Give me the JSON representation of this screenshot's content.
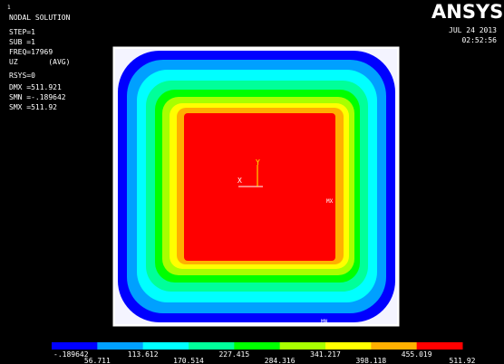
{
  "window_number": "1",
  "header": {
    "title": "NODAL SOLUTION",
    "lines": [
      "STEP=1",
      "SUB =1",
      "FREQ=17969",
      "UZ       (AVG)",
      "RSYS=0",
      "DMX =511.921",
      "SMN =-.189642",
      "SMX =511.92"
    ]
  },
  "logo": {
    "text": "ANSYS",
    "date": "JUL 24 2013",
    "time": "02:52:56"
  },
  "plot": {
    "max_label": "MX",
    "min_label": "MN",
    "axis_x": "X",
    "axis_y": "Y"
  },
  "legend": {
    "labels": [
      "-.189642",
      "56.711",
      "113.612",
      "170.514",
      "227.415",
      "284.316",
      "341.217",
      "398.118",
      "455.019",
      "511.92"
    ],
    "colors": [
      "#0000ff",
      "#00a0ff",
      "#00ffff",
      "#00ff9a",
      "#00ff00",
      "#a8ff00",
      "#ffff00",
      "#ffb000",
      "#ff0000"
    ]
  }
}
